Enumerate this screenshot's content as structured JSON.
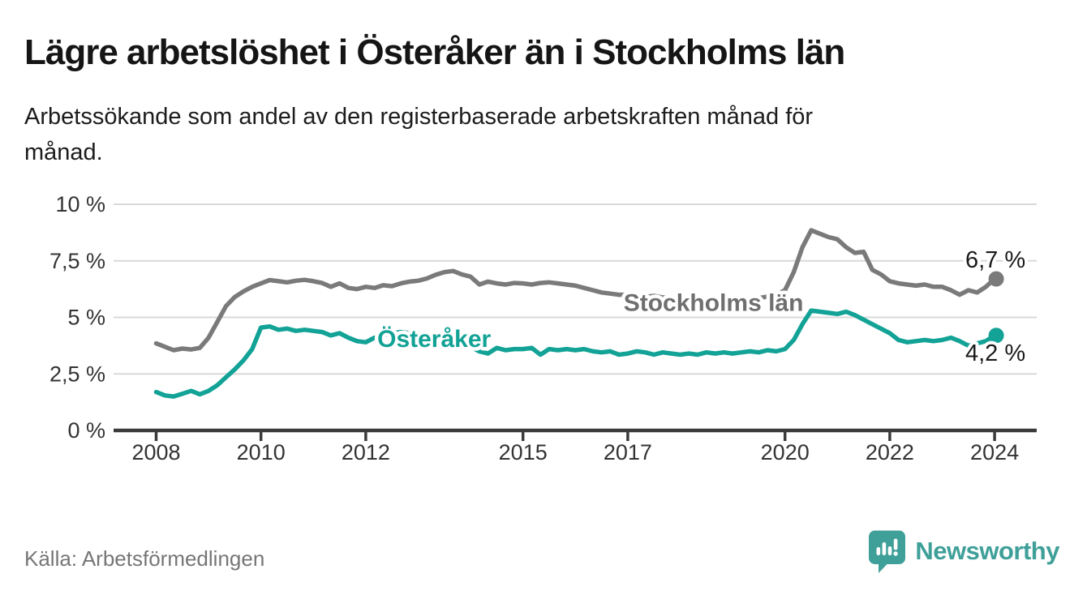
{
  "header": {
    "title": "Lägre arbetslöshet i Österåker än i Stockholms län",
    "subtitle_lines": [
      "Arbetssökande som andel av den registerbaserade arbetskraften månad för",
      "månad."
    ]
  },
  "footer": {
    "source": "Källa: Arbetsförmedlingen",
    "brand": "Newsworthy"
  },
  "colors": {
    "stockholm_line": "#7a7a7a",
    "stockholm_label": "#6f6f6f",
    "osteraker_line": "#12a296",
    "value_label": "#1a1a1a",
    "gridline": "#d9d9d9",
    "axis": "#3a3a3a",
    "tick_label": "#333333",
    "brand_teal": "#3f9f99"
  },
  "chart_data": {
    "type": "line",
    "x_axis": {
      "unit": "year",
      "start": 2008.0,
      "step_years": 0.1666667,
      "tick_labels": [
        "2008",
        "2010",
        "2012",
        "2015",
        "2017",
        "2020",
        "2022",
        "2024"
      ],
      "tick_values": [
        2008,
        2010,
        2012,
        2015,
        2017,
        2020,
        2022,
        2024
      ]
    },
    "y_axis": {
      "ylim": [
        0,
        10
      ],
      "tick_values": [
        0,
        2.5,
        5,
        7.5,
        10
      ],
      "tick_labels": [
        "0 %",
        "2,5 %",
        "5 %",
        "7,5 %",
        "10 %"
      ],
      "grid": true
    },
    "series": [
      {
        "name": "Stockholms län",
        "label_year": 2016.92,
        "label_value": 5.65,
        "end_label": "6,7 %",
        "end_value": 6.7,
        "values": [
          3.85,
          3.7,
          3.55,
          3.62,
          3.58,
          3.65,
          4.1,
          4.8,
          5.5,
          5.9,
          6.15,
          6.35,
          6.5,
          6.65,
          6.6,
          6.55,
          6.62,
          6.66,
          6.6,
          6.52,
          6.35,
          6.5,
          6.3,
          6.25,
          6.35,
          6.3,
          6.42,
          6.38,
          6.5,
          6.58,
          6.62,
          6.72,
          6.88,
          7.0,
          7.05,
          6.9,
          6.8,
          6.45,
          6.58,
          6.5,
          6.45,
          6.52,
          6.5,
          6.45,
          6.52,
          6.55,
          6.5,
          6.45,
          6.4,
          6.3,
          6.2,
          6.1,
          6.05,
          6.0,
          6.0,
          5.95,
          5.9,
          5.95,
          5.88,
          5.85,
          5.8,
          5.75,
          5.72,
          5.76,
          5.7,
          5.68,
          5.72,
          5.76,
          5.8,
          5.85,
          5.92,
          6.0,
          6.2,
          7.0,
          8.1,
          8.85,
          8.7,
          8.55,
          8.45,
          8.1,
          7.85,
          7.9,
          7.1,
          6.9,
          6.6,
          6.5,
          6.45,
          6.4,
          6.45,
          6.35,
          6.35,
          6.2,
          6.0,
          6.2,
          6.1,
          6.35,
          6.7
        ]
      },
      {
        "name": "Österåker",
        "label_year": 2012.22,
        "label_value": 4.05,
        "end_label": "4,2 %",
        "end_value": 4.2,
        "values": [
          1.7,
          1.55,
          1.5,
          1.62,
          1.75,
          1.6,
          1.75,
          2.0,
          2.35,
          2.7,
          3.1,
          3.6,
          4.55,
          4.6,
          4.45,
          4.5,
          4.4,
          4.45,
          4.4,
          4.35,
          4.2,
          4.3,
          4.1,
          3.95,
          3.9,
          4.1,
          4.2,
          4.3,
          4.35,
          4.3,
          4.25,
          4.2,
          4.1,
          4.0,
          3.9,
          3.8,
          3.7,
          3.5,
          3.4,
          3.65,
          3.55,
          3.6,
          3.6,
          3.65,
          3.35,
          3.6,
          3.55,
          3.6,
          3.55,
          3.6,
          3.5,
          3.45,
          3.5,
          3.35,
          3.4,
          3.5,
          3.45,
          3.35,
          3.45,
          3.4,
          3.35,
          3.4,
          3.35,
          3.45,
          3.4,
          3.45,
          3.4,
          3.45,
          3.5,
          3.45,
          3.55,
          3.5,
          3.6,
          4.0,
          4.7,
          5.3,
          5.25,
          5.2,
          5.15,
          5.25,
          5.1,
          4.9,
          4.7,
          4.5,
          4.3,
          4.0,
          3.9,
          3.95,
          4.0,
          3.95,
          4.0,
          4.1,
          3.95,
          3.75,
          3.85,
          3.95,
          4.2
        ]
      }
    ],
    "title": "Lägre arbetslöshet i Österåker än i Stockholms län",
    "value_suffix": " %"
  }
}
